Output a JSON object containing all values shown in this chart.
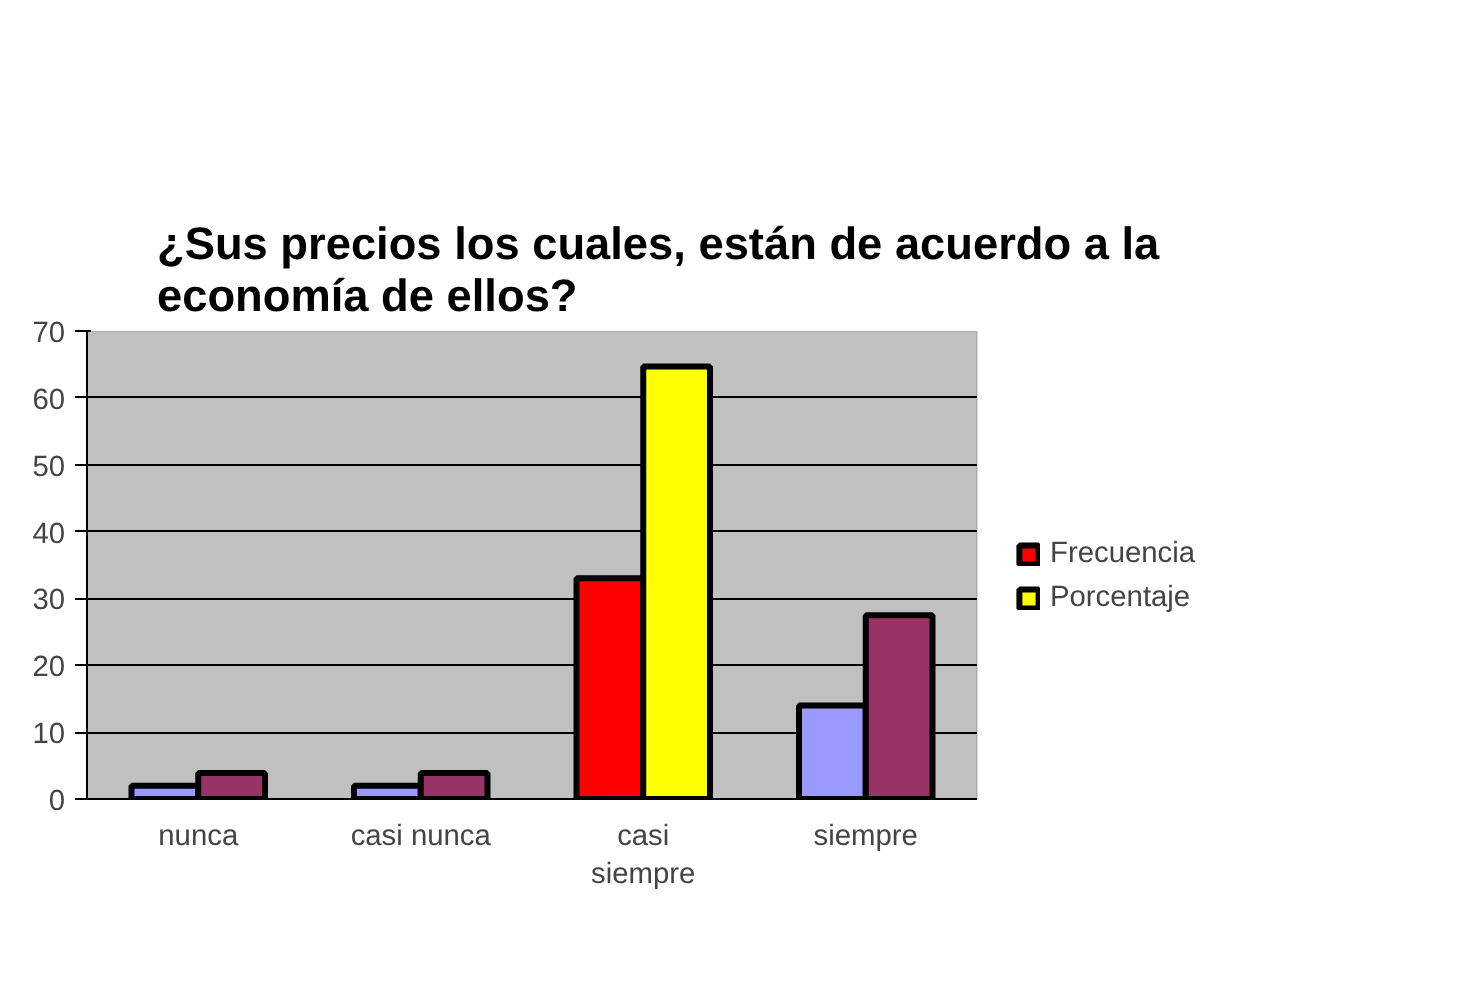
{
  "chart_data": {
    "type": "bar",
    "title": "¿Sus precios los cuales, están de acuerdo a la economía de ellos?",
    "categories": [
      "nunca",
      "casi nunca",
      "casi siempre",
      "siempre"
    ],
    "series": [
      {
        "name": "Frecuencia",
        "color": "#ff0000",
        "colors": [
          "#9999ff",
          "#9999ff",
          "#ff0000",
          "#9999ff"
        ],
        "values": [
          2,
          2,
          33,
          14
        ]
      },
      {
        "name": "Porcentaje",
        "color": "#ffff00",
        "colors": [
          "#993366",
          "#993366",
          "#ffff00",
          "#993366"
        ],
        "values": [
          3.9,
          3.9,
          64.7,
          27.5
        ]
      }
    ],
    "ylim": [
      0,
      70
    ],
    "yticks": [
      0,
      10,
      20,
      30,
      40,
      50,
      60,
      70
    ],
    "grid": "y",
    "legend": "right"
  }
}
